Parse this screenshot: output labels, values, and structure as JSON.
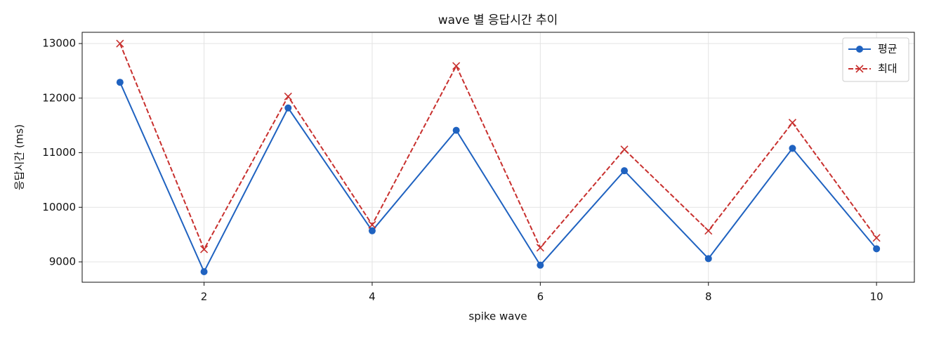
{
  "chart_data": {
    "type": "line",
    "title": "wave 별 응답시간 추이",
    "xlabel": "spike wave",
    "ylabel": "응답시간 (ms)",
    "x": [
      1,
      2,
      3,
      4,
      5,
      6,
      7,
      8,
      9,
      10
    ],
    "series": [
      {
        "name": "평균",
        "color": "#1f62c0",
        "marker": "o",
        "linestyle": "solid",
        "values": [
          12290,
          8820,
          11820,
          9570,
          11410,
          8940,
          10670,
          9060,
          11080,
          9240
        ]
      },
      {
        "name": "최대",
        "color": "#c8302e",
        "marker": "x",
        "linestyle": "dashed",
        "values": [
          13000,
          9230,
          12030,
          9680,
          12590,
          9260,
          11060,
          9570,
          11550,
          9440
        ]
      }
    ],
    "xlim": [
      0.55,
      10.45
    ],
    "ylim": [
      8627,
      13206
    ],
    "xticks": [
      2,
      4,
      6,
      8,
      10
    ],
    "yticks": [
      9000,
      10000,
      11000,
      12000,
      13000
    ],
    "grid": true,
    "legend": "upper right"
  }
}
